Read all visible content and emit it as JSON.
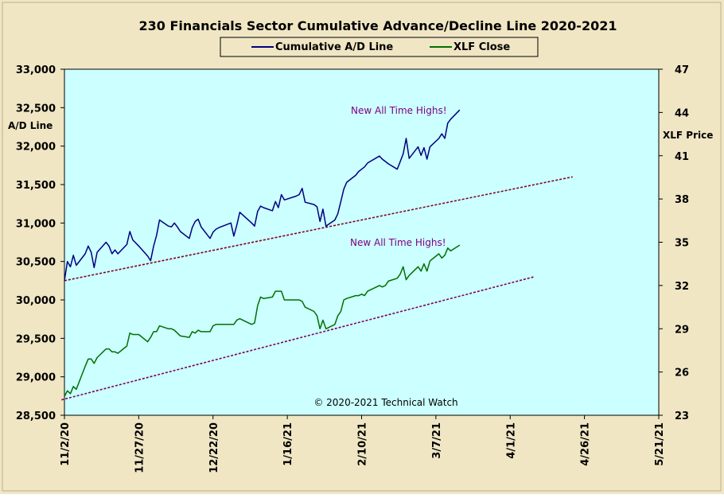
{
  "chart_data": {
    "type": "line",
    "title": "230 Financials  Sector Cumulative  Advance/Decline  Line 2020-2021",
    "ylabel_left": "A/D Line",
    "ylabel_right": "XLF Price",
    "watermark": "© 2020-2021  Technical Watch",
    "annotations": [
      {
        "text": "New All Time Highs!",
        "series": "ad"
      },
      {
        "text": "New All Time Highs!",
        "series": "xlf"
      }
    ],
    "yleft": {
      "min": 28500,
      "max": 33000,
      "ticks": [
        "28,500",
        "29,000",
        "29,500",
        "30,000",
        "30,500",
        "31,000",
        "31,500",
        "32,000",
        "32,500",
        "33,000"
      ]
    },
    "yright": {
      "min": 23,
      "max": 47,
      "ticks": [
        "23",
        "26",
        "29",
        "32",
        "35",
        "38",
        "41",
        "44",
        "47"
      ]
    },
    "xaxis": {
      "start": "2020-11-02",
      "end": "2021-05-21",
      "ticks": [
        "11/2/20",
        "11/27/20",
        "12/22/20",
        "1/16/21",
        "2/10/21",
        "3/7/21",
        "4/1/21",
        "4/26/21",
        "5/21/21"
      ]
    },
    "grid": false,
    "legend_position": "top-center",
    "series": [
      {
        "name": "Cumulative A/D Line",
        "key": "ad",
        "axis": "left",
        "color": "#000080",
        "points": [
          [
            "2020-11-02",
            30250
          ],
          [
            "2020-11-03",
            30500
          ],
          [
            "2020-11-04",
            30430
          ],
          [
            "2020-11-05",
            30580
          ],
          [
            "2020-11-06",
            30450
          ],
          [
            "2020-11-09",
            30600
          ],
          [
            "2020-11-10",
            30700
          ],
          [
            "2020-11-11",
            30620
          ],
          [
            "2020-11-12",
            30420
          ],
          [
            "2020-11-13",
            30620
          ],
          [
            "2020-11-16",
            30750
          ],
          [
            "2020-11-17",
            30700
          ],
          [
            "2020-11-18",
            30600
          ],
          [
            "2020-11-19",
            30650
          ],
          [
            "2020-11-20",
            30600
          ],
          [
            "2020-11-23",
            30720
          ],
          [
            "2020-11-24",
            30890
          ],
          [
            "2020-11-25",
            30780
          ],
          [
            "2020-11-27",
            30700
          ],
          [
            "2020-11-30",
            30570
          ],
          [
            "2020-12-01",
            30510
          ],
          [
            "2020-12-02",
            30700
          ],
          [
            "2020-12-03",
            30840
          ],
          [
            "2020-12-04",
            31040
          ],
          [
            "2020-12-07",
            30960
          ],
          [
            "2020-12-08",
            30950
          ],
          [
            "2020-12-09",
            31000
          ],
          [
            "2020-12-10",
            30950
          ],
          [
            "2020-12-11",
            30890
          ],
          [
            "2020-12-14",
            30800
          ],
          [
            "2020-12-15",
            30940
          ],
          [
            "2020-12-16",
            31020
          ],
          [
            "2020-12-17",
            31050
          ],
          [
            "2020-12-18",
            30950
          ],
          [
            "2020-12-21",
            30800
          ],
          [
            "2020-12-22",
            30880
          ],
          [
            "2020-12-23",
            30920
          ],
          [
            "2020-12-24",
            30940
          ],
          [
            "2020-12-28",
            31000
          ],
          [
            "2020-12-29",
            30830
          ],
          [
            "2020-12-30",
            30970
          ],
          [
            "2020-12-31",
            31140
          ],
          [
            "2021-01-04",
            31000
          ],
          [
            "2021-01-05",
            30960
          ],
          [
            "2021-01-06",
            31150
          ],
          [
            "2021-01-07",
            31220
          ],
          [
            "2021-01-08",
            31200
          ],
          [
            "2021-01-11",
            31160
          ],
          [
            "2021-01-12",
            31280
          ],
          [
            "2021-01-13",
            31200
          ],
          [
            "2021-01-14",
            31370
          ],
          [
            "2021-01-15",
            31300
          ],
          [
            "2021-01-19",
            31350
          ],
          [
            "2021-01-20",
            31370
          ],
          [
            "2021-01-21",
            31450
          ],
          [
            "2021-01-22",
            31270
          ],
          [
            "2021-01-25",
            31240
          ],
          [
            "2021-01-26",
            31210
          ],
          [
            "2021-01-27",
            31020
          ],
          [
            "2021-01-28",
            31180
          ],
          [
            "2021-01-29",
            30960
          ],
          [
            "2021-02-01",
            31040
          ],
          [
            "2021-02-02",
            31120
          ],
          [
            "2021-02-03",
            31280
          ],
          [
            "2021-02-04",
            31440
          ],
          [
            "2021-02-05",
            31530
          ],
          [
            "2021-02-08",
            31620
          ],
          [
            "2021-02-09",
            31670
          ],
          [
            "2021-02-10",
            31700
          ],
          [
            "2021-02-11",
            31730
          ],
          [
            "2021-02-12",
            31780
          ],
          [
            "2021-02-16",
            31870
          ],
          [
            "2021-02-17",
            31830
          ],
          [
            "2021-02-18",
            31800
          ],
          [
            "2021-02-19",
            31770
          ],
          [
            "2021-02-22",
            31700
          ],
          [
            "2021-02-23",
            31800
          ],
          [
            "2021-02-24",
            31900
          ],
          [
            "2021-02-25",
            32100
          ],
          [
            "2021-02-26",
            31840
          ],
          [
            "2021-03-01",
            31990
          ],
          [
            "2021-03-02",
            31880
          ],
          [
            "2021-03-03",
            31980
          ],
          [
            "2021-03-04",
            31830
          ],
          [
            "2021-03-05",
            31990
          ],
          [
            "2021-03-08",
            32100
          ],
          [
            "2021-03-09",
            32160
          ],
          [
            "2021-03-10",
            32100
          ],
          [
            "2021-03-11",
            32300
          ],
          [
            "2021-03-12",
            32350
          ],
          [
            "2021-03-15",
            32470
          ]
        ]
      },
      {
        "name": "XLF Close",
        "key": "xlf",
        "axis": "right",
        "color": "#007000",
        "points": [
          [
            "2020-11-02",
            24.3
          ],
          [
            "2020-11-03",
            24.7
          ],
          [
            "2020-11-04",
            24.5
          ],
          [
            "2020-11-05",
            25.0
          ],
          [
            "2020-11-06",
            24.8
          ],
          [
            "2020-11-09",
            26.4
          ],
          [
            "2020-11-10",
            26.9
          ],
          [
            "2020-11-11",
            26.9
          ],
          [
            "2020-11-12",
            26.6
          ],
          [
            "2020-11-13",
            27.0
          ],
          [
            "2020-11-16",
            27.6
          ],
          [
            "2020-11-17",
            27.6
          ],
          [
            "2020-11-18",
            27.4
          ],
          [
            "2020-11-19",
            27.4
          ],
          [
            "2020-11-20",
            27.3
          ],
          [
            "2020-11-23",
            27.8
          ],
          [
            "2020-11-24",
            28.7
          ],
          [
            "2020-11-25",
            28.6
          ],
          [
            "2020-11-27",
            28.6
          ],
          [
            "2020-11-30",
            28.1
          ],
          [
            "2020-12-01",
            28.4
          ],
          [
            "2020-12-02",
            28.8
          ],
          [
            "2020-12-03",
            28.8
          ],
          [
            "2020-12-04",
            29.2
          ],
          [
            "2020-12-07",
            29.0
          ],
          [
            "2020-12-08",
            29.0
          ],
          [
            "2020-12-09",
            28.9
          ],
          [
            "2020-12-10",
            28.7
          ],
          [
            "2020-12-11",
            28.5
          ],
          [
            "2020-12-14",
            28.4
          ],
          [
            "2020-12-15",
            28.8
          ],
          [
            "2020-12-16",
            28.7
          ],
          [
            "2020-12-17",
            28.9
          ],
          [
            "2020-12-18",
            28.8
          ],
          [
            "2020-12-21",
            28.8
          ],
          [
            "2020-12-22",
            29.2
          ],
          [
            "2020-12-23",
            29.3
          ],
          [
            "2020-12-24",
            29.3
          ],
          [
            "2020-12-28",
            29.3
          ],
          [
            "2020-12-29",
            29.3
          ],
          [
            "2020-12-30",
            29.6
          ],
          [
            "2020-12-31",
            29.7
          ],
          [
            "2021-01-04",
            29.3
          ],
          [
            "2021-01-05",
            29.4
          ],
          [
            "2021-01-06",
            30.6
          ],
          [
            "2021-01-07",
            31.2
          ],
          [
            "2021-01-08",
            31.1
          ],
          [
            "2021-01-11",
            31.2
          ],
          [
            "2021-01-12",
            31.6
          ],
          [
            "2021-01-13",
            31.6
          ],
          [
            "2021-01-14",
            31.6
          ],
          [
            "2021-01-15",
            31.0
          ],
          [
            "2021-01-19",
            31.0
          ],
          [
            "2021-01-20",
            31.0
          ],
          [
            "2021-01-21",
            30.9
          ],
          [
            "2021-01-22",
            30.5
          ],
          [
            "2021-01-25",
            30.2
          ],
          [
            "2021-01-26",
            29.9
          ],
          [
            "2021-01-27",
            29.0
          ],
          [
            "2021-01-28",
            29.6
          ],
          [
            "2021-01-29",
            29.0
          ],
          [
            "2021-02-01",
            29.3
          ],
          [
            "2021-02-02",
            29.9
          ],
          [
            "2021-02-03",
            30.2
          ],
          [
            "2021-02-04",
            31.0
          ],
          [
            "2021-02-05",
            31.1
          ],
          [
            "2021-02-08",
            31.3
          ],
          [
            "2021-02-09",
            31.3
          ],
          [
            "2021-02-10",
            31.4
          ],
          [
            "2021-02-11",
            31.3
          ],
          [
            "2021-02-12",
            31.6
          ],
          [
            "2021-02-16",
            32.0
          ],
          [
            "2021-02-17",
            31.9
          ],
          [
            "2021-02-18",
            32.0
          ],
          [
            "2021-02-19",
            32.3
          ],
          [
            "2021-02-22",
            32.5
          ],
          [
            "2021-02-23",
            32.8
          ],
          [
            "2021-02-24",
            33.3
          ],
          [
            "2021-02-25",
            32.4
          ],
          [
            "2021-02-26",
            32.7
          ],
          [
            "2021-03-01",
            33.3
          ],
          [
            "2021-03-02",
            33.0
          ],
          [
            "2021-03-03",
            33.5
          ],
          [
            "2021-03-04",
            33.0
          ],
          [
            "2021-03-05",
            33.7
          ],
          [
            "2021-03-08",
            34.2
          ],
          [
            "2021-03-09",
            33.9
          ],
          [
            "2021-03-10",
            34.1
          ],
          [
            "2021-03-11",
            34.6
          ],
          [
            "2021-03-12",
            34.4
          ],
          [
            "2021-03-15",
            34.8
          ]
        ]
      }
    ],
    "trendlines": [
      {
        "axis": "left",
        "color": "#800020",
        "dashed": true,
        "from": [
          "2020-11-02",
          30250
        ],
        "to": [
          "2021-04-22",
          31600
        ]
      },
      {
        "axis": "left",
        "color": "#800060",
        "dashed": true,
        "from": [
          "2020-11-01",
          28700
        ],
        "to": [
          "2021-04-09",
          30300
        ]
      }
    ]
  },
  "colors": {
    "background": "#f0e6c4",
    "plot_background": "#ccffff",
    "legend_background": "#f0e6c4",
    "annotation": "#800080"
  }
}
